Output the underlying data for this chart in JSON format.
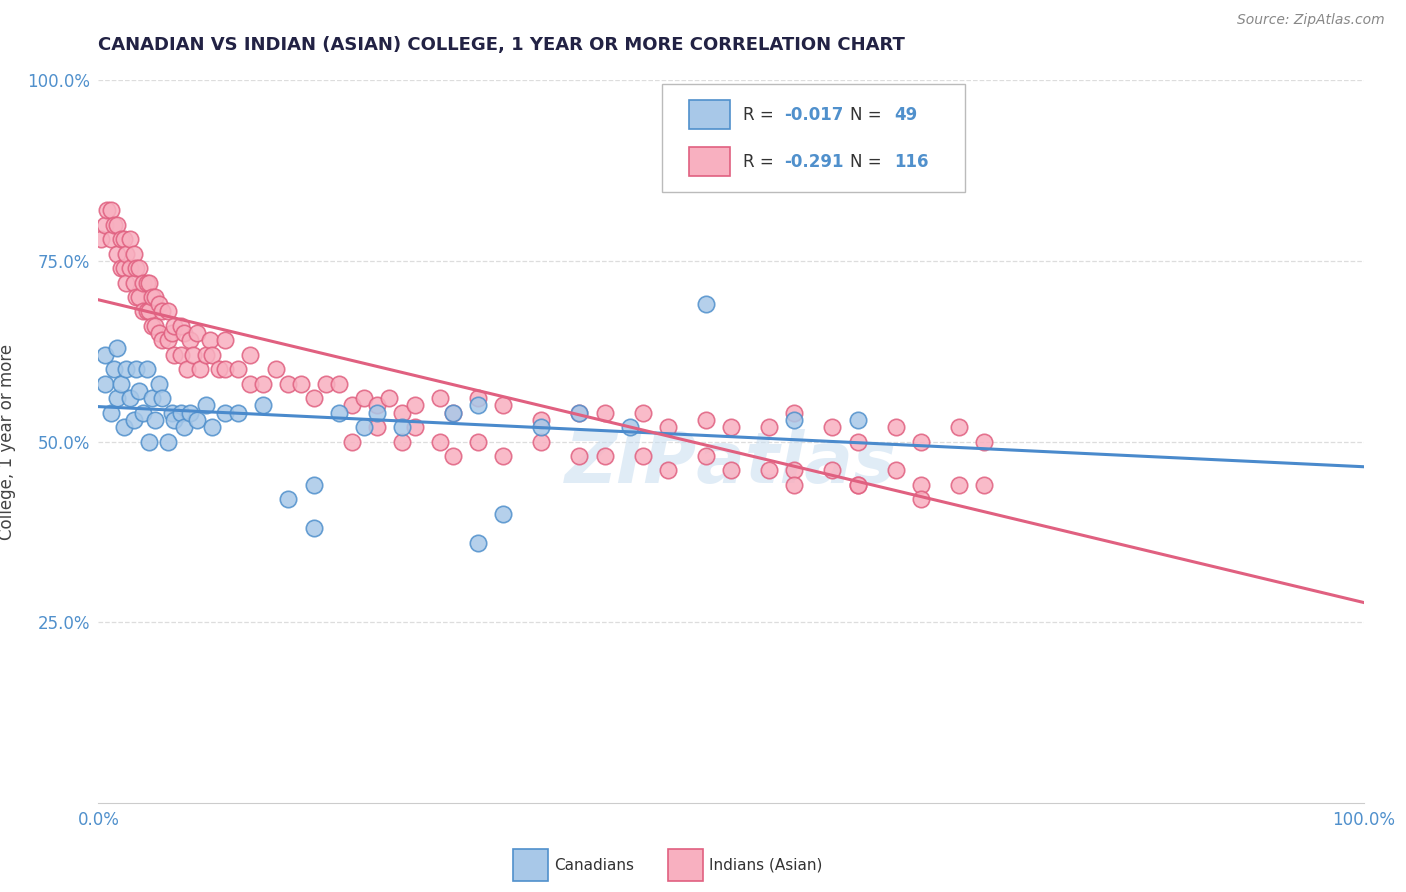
{
  "title": "CANADIAN VS INDIAN (ASIAN) COLLEGE, 1 YEAR OR MORE CORRELATION CHART",
  "source_text": "Source: ZipAtlas.com",
  "ylabel": "College, 1 year or more",
  "xlim": [
    0.0,
    1.0
  ],
  "ylim": [
    0.0,
    1.0
  ],
  "ytick_positions": [
    0.25,
    0.5,
    0.75,
    1.0
  ],
  "ytick_labels": [
    "25.0%",
    "50.0%",
    "75.0%",
    "100.0%"
  ],
  "xtick_positions": [
    0.0,
    1.0
  ],
  "xtick_labels": [
    "0.0%",
    "100.0%"
  ],
  "legend_r_canadian": "-0.017",
  "legend_n_canadian": "49",
  "legend_r_indian": "-0.291",
  "legend_n_indian": "116",
  "canadian_fill": "#a8c8e8",
  "canadian_edge": "#5090cc",
  "indian_fill": "#f8b0c0",
  "indian_edge": "#e06080",
  "canadian_line": "#4a8acc",
  "indian_line": "#e06080",
  "grid_color": "#dddddd",
  "title_color": "#222244",
  "axis_tick_color": "#5090cc",
  "ylabel_color": "#444444",
  "watermark_color": "#c8ddf0",
  "background": "#ffffff",
  "canadians_x": [
    0.005,
    0.005,
    0.01,
    0.012,
    0.015,
    0.015,
    0.018,
    0.02,
    0.022,
    0.025,
    0.028,
    0.03,
    0.032,
    0.035,
    0.038,
    0.04,
    0.042,
    0.045,
    0.048,
    0.05,
    0.055,
    0.058,
    0.06,
    0.065,
    0.068,
    0.072,
    0.078,
    0.085,
    0.09,
    0.1,
    0.11,
    0.13,
    0.15,
    0.17,
    0.19,
    0.21,
    0.22,
    0.24,
    0.28,
    0.3,
    0.32,
    0.35,
    0.38,
    0.42,
    0.48,
    0.55,
    0.6,
    0.17,
    0.3
  ],
  "canadians_y": [
    0.58,
    0.62,
    0.54,
    0.6,
    0.56,
    0.63,
    0.58,
    0.52,
    0.6,
    0.56,
    0.53,
    0.6,
    0.57,
    0.54,
    0.6,
    0.5,
    0.56,
    0.53,
    0.58,
    0.56,
    0.5,
    0.54,
    0.53,
    0.54,
    0.52,
    0.54,
    0.53,
    0.55,
    0.52,
    0.54,
    0.54,
    0.55,
    0.42,
    0.44,
    0.54,
    0.52,
    0.54,
    0.52,
    0.54,
    0.55,
    0.4,
    0.52,
    0.54,
    0.52,
    0.69,
    0.53,
    0.53,
    0.38,
    0.36
  ],
  "indians_x": [
    0.002,
    0.005,
    0.007,
    0.01,
    0.01,
    0.012,
    0.015,
    0.015,
    0.018,
    0.018,
    0.02,
    0.02,
    0.022,
    0.022,
    0.025,
    0.025,
    0.028,
    0.028,
    0.03,
    0.03,
    0.032,
    0.032,
    0.035,
    0.035,
    0.038,
    0.038,
    0.04,
    0.04,
    0.042,
    0.042,
    0.045,
    0.045,
    0.048,
    0.048,
    0.05,
    0.05,
    0.055,
    0.055,
    0.058,
    0.06,
    0.06,
    0.065,
    0.065,
    0.068,
    0.07,
    0.072,
    0.075,
    0.078,
    0.08,
    0.085,
    0.088,
    0.09,
    0.095,
    0.1,
    0.1,
    0.11,
    0.12,
    0.12,
    0.13,
    0.14,
    0.15,
    0.16,
    0.17,
    0.18,
    0.19,
    0.2,
    0.21,
    0.22,
    0.23,
    0.24,
    0.25,
    0.27,
    0.28,
    0.3,
    0.32,
    0.35,
    0.38,
    0.4,
    0.43,
    0.45,
    0.48,
    0.5,
    0.53,
    0.55,
    0.58,
    0.6,
    0.63,
    0.65,
    0.68,
    0.7,
    0.2,
    0.22,
    0.24,
    0.25,
    0.27,
    0.28,
    0.3,
    0.32,
    0.35,
    0.38,
    0.4,
    0.43,
    0.45,
    0.48,
    0.5,
    0.53,
    0.55,
    0.58,
    0.6,
    0.63,
    0.65,
    0.68,
    0.7,
    0.55,
    0.6,
    0.65
  ],
  "indians_y": [
    0.78,
    0.8,
    0.82,
    0.78,
    0.82,
    0.8,
    0.76,
    0.8,
    0.74,
    0.78,
    0.74,
    0.78,
    0.72,
    0.76,
    0.74,
    0.78,
    0.72,
    0.76,
    0.7,
    0.74,
    0.7,
    0.74,
    0.68,
    0.72,
    0.68,
    0.72,
    0.68,
    0.72,
    0.66,
    0.7,
    0.66,
    0.7,
    0.65,
    0.69,
    0.64,
    0.68,
    0.64,
    0.68,
    0.65,
    0.62,
    0.66,
    0.62,
    0.66,
    0.65,
    0.6,
    0.64,
    0.62,
    0.65,
    0.6,
    0.62,
    0.64,
    0.62,
    0.6,
    0.6,
    0.64,
    0.6,
    0.58,
    0.62,
    0.58,
    0.6,
    0.58,
    0.58,
    0.56,
    0.58,
    0.58,
    0.55,
    0.56,
    0.55,
    0.56,
    0.54,
    0.55,
    0.56,
    0.54,
    0.56,
    0.55,
    0.53,
    0.54,
    0.54,
    0.54,
    0.52,
    0.53,
    0.52,
    0.52,
    0.54,
    0.52,
    0.5,
    0.52,
    0.5,
    0.52,
    0.5,
    0.5,
    0.52,
    0.5,
    0.52,
    0.5,
    0.48,
    0.5,
    0.48,
    0.5,
    0.48,
    0.48,
    0.48,
    0.46,
    0.48,
    0.46,
    0.46,
    0.46,
    0.46,
    0.44,
    0.46,
    0.44,
    0.44,
    0.44,
    0.44,
    0.44,
    0.42
  ]
}
